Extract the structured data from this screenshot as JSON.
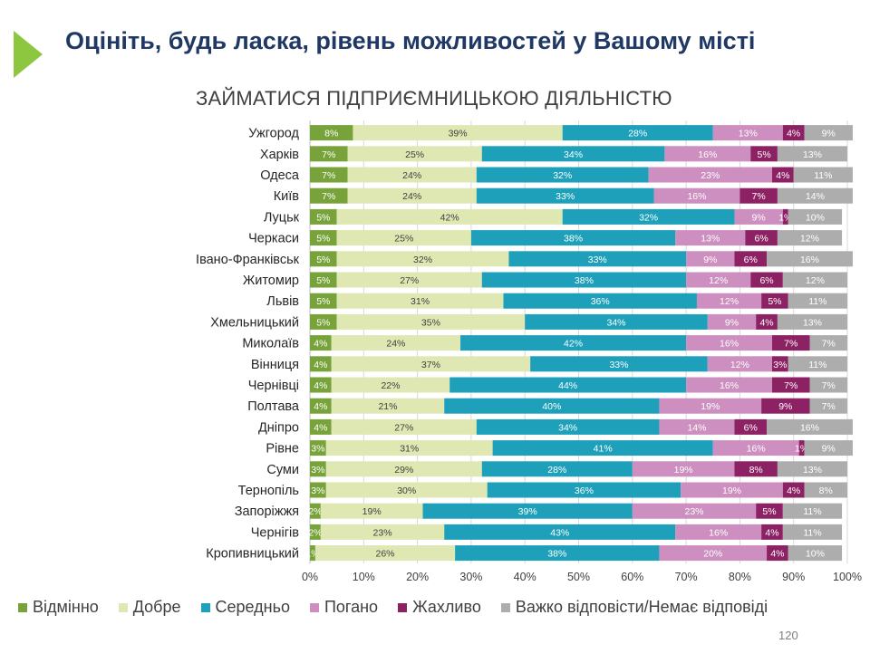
{
  "slide": {
    "title": "Оцініть, будь ласка, рівень можливостей у Вашому місті",
    "page_number": "120"
  },
  "chart_data": {
    "type": "bar",
    "orientation": "horizontal",
    "stacked": "100%",
    "title": "ЗАЙМАТИСЯ ПІДПРИЄМНИЦЬКОЮ ДІЯЛЬНІСТЮ",
    "categories": [
      "Ужгород",
      "Харків",
      "Одеса",
      "Київ",
      "Луцьк",
      "Черкаси",
      "Івано-Франківськ",
      "Житомир",
      "Львів",
      "Хмельницький",
      "Миколаїв",
      "Вінниця",
      "Чернівці",
      "Полтава",
      "Дніпро",
      "Рівне",
      "Суми",
      "Тернопіль",
      "Запоріжжя",
      "Чернігів",
      "Кропивницький"
    ],
    "series": [
      {
        "name": "Відмінно",
        "color": "#77a33a",
        "values": [
          8,
          7,
          7,
          7,
          5,
          5,
          5,
          5,
          5,
          5,
          4,
          4,
          4,
          4,
          4,
          3,
          3,
          3,
          2,
          2,
          1
        ]
      },
      {
        "name": "Добре",
        "color": "#dfe8b3",
        "values": [
          39,
          25,
          24,
          24,
          42,
          25,
          32,
          27,
          31,
          35,
          24,
          37,
          22,
          21,
          27,
          31,
          29,
          30,
          19,
          23,
          26
        ]
      },
      {
        "name": "Середньо",
        "color": "#1ea0bb",
        "values": [
          28,
          34,
          32,
          33,
          32,
          38,
          33,
          38,
          36,
          34,
          42,
          33,
          44,
          40,
          34,
          41,
          28,
          36,
          39,
          43,
          38
        ]
      },
      {
        "name": "Погано",
        "color": "#cd8fbf",
        "values": [
          13,
          16,
          23,
          16,
          9,
          13,
          9,
          12,
          12,
          9,
          16,
          12,
          16,
          19,
          14,
          16,
          19,
          19,
          23,
          16,
          20
        ]
      },
      {
        "name": "Жахливо",
        "color": "#8c2164",
        "values": [
          4,
          5,
          4,
          7,
          1,
          6,
          6,
          6,
          5,
          4,
          7,
          3,
          7,
          9,
          6,
          1,
          8,
          4,
          5,
          4,
          4
        ]
      },
      {
        "name": "Важко відповісти/Немає відповіді",
        "color": "#adadad",
        "values": [
          9,
          13,
          11,
          14,
          10,
          12,
          16,
          12,
          11,
          13,
          7,
          11,
          7,
          7,
          16,
          9,
          13,
          8,
          11,
          11,
          10
        ]
      }
    ],
    "xlim": [
      0,
      100
    ],
    "x_ticks": [
      "0%",
      "10%",
      "20%",
      "30%",
      "40%",
      "50%",
      "60%",
      "70%",
      "80%",
      "90%",
      "100%"
    ],
    "grid": true,
    "legend_position": "bottom"
  }
}
